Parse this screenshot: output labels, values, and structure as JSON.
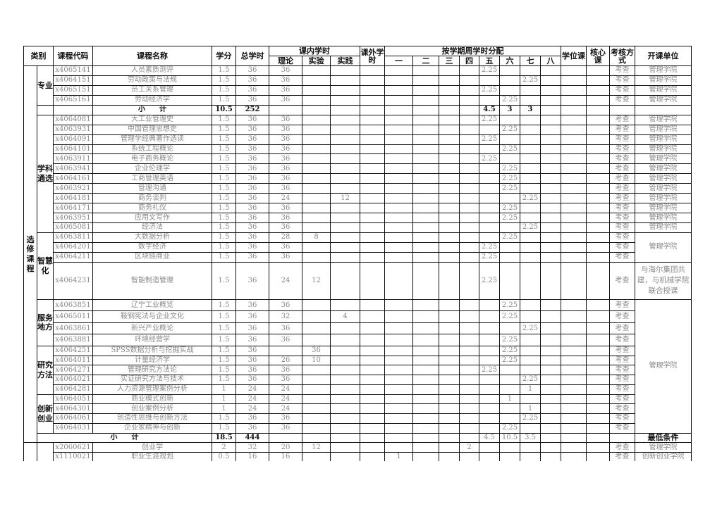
{
  "header": {
    "category": "类别",
    "code": "课程代码",
    "name": "课程名称",
    "credits": "学分",
    "total_hours": "总学时",
    "in_class": "课内学时",
    "theory": "理论",
    "lab": "实验",
    "practice": "实践",
    "extra": "课外学时",
    "semester_dist": "按学期周学时分配",
    "semesters": [
      "一",
      "二",
      "三",
      "四",
      "五",
      "六",
      "七",
      "八"
    ],
    "degree": "学位课",
    "core": "核心课",
    "assess": "考核方式",
    "unit": "开课单位"
  },
  "outer_category": "选修课程",
  "subtotal_label": "小　　计",
  "groups": [
    {
      "label": "专业",
      "start": 0,
      "rows": 4
    },
    {
      "label": "学科通选",
      "start": 5,
      "rows": 12
    },
    {
      "label": "智慧化",
      "start": 17,
      "rows": 4
    },
    {
      "label": "服务地方",
      "start": 21,
      "rows": 4
    },
    {
      "label": "研究方法",
      "start": 25,
      "rows": 5
    },
    {
      "label": "创新创业",
      "start": 30,
      "rows": 4
    }
  ],
  "rows": [
    {
      "code": "x4065141",
      "name": "人员素质测评",
      "credits": "1.5",
      "total": "36",
      "theory": "36",
      "lab": "",
      "practice": "",
      "extra": "",
      "sem": [
        "",
        "",
        "",
        "",
        "2.25",
        "",
        "",
        ""
      ],
      "degree": "",
      "core": "",
      "assess": "考查"
    },
    {
      "code": "x4064151",
      "name": "劳动政策与法规",
      "credits": "1.5",
      "total": "36",
      "theory": "36",
      "lab": "",
      "practice": "",
      "extra": "",
      "sem": [
        "",
        "",
        "",
        "",
        "",
        "",
        "2.25",
        ""
      ],
      "degree": "",
      "core": "",
      "assess": "考查"
    },
    {
      "code": "x4065151",
      "name": "员工关系管理",
      "credits": "1.5",
      "total": "36",
      "theory": "36",
      "lab": "",
      "practice": "",
      "extra": "",
      "sem": [
        "",
        "",
        "",
        "",
        "2.25",
        "",
        "",
        ""
      ],
      "degree": "",
      "core": "",
      "assess": "考查"
    },
    {
      "code": "x4065161",
      "name": "劳动经济学",
      "credits": "1.5",
      "total": "36",
      "theory": "36",
      "lab": "",
      "practice": "",
      "extra": "",
      "sem": [
        "",
        "",
        "",
        "",
        "",
        "2.25",
        "",
        ""
      ],
      "degree": "",
      "core": "",
      "assess": "考查"
    },
    {
      "subtotal": true,
      "credits": "10.5",
      "total": "252",
      "theory": "",
      "lab": "",
      "practice": "",
      "extra": "",
      "sem": [
        "",
        "",
        "",
        "",
        "4.5",
        "3",
        "3",
        ""
      ],
      "degree": "",
      "core": "",
      "assess": ""
    },
    {
      "code": "x4064081",
      "name": "大工业管理史",
      "credits": "1.5",
      "total": "36",
      "theory": "36",
      "lab": "",
      "practice": "",
      "extra": "",
      "sem": [
        "",
        "",
        "",
        "",
        "2.25",
        "",
        "",
        ""
      ],
      "degree": "",
      "core": "",
      "assess": "考查"
    },
    {
      "code": "x4063931",
      "name": "中国管理思想史",
      "credits": "1.5",
      "total": "36",
      "theory": "36",
      "lab": "",
      "practice": "",
      "extra": "",
      "sem": [
        "",
        "",
        "",
        "",
        "",
        "2.25",
        "",
        ""
      ],
      "degree": "",
      "core": "",
      "assess": "考查"
    },
    {
      "code": "x4064091",
      "name": "管理学经典著作选读",
      "credits": "1.5",
      "total": "36",
      "theory": "36",
      "lab": "",
      "practice": "",
      "extra": "",
      "sem": [
        "",
        "",
        "",
        "",
        "2.25",
        "",
        "",
        ""
      ],
      "degree": "",
      "core": "",
      "assess": "考查"
    },
    {
      "code": "x4064101",
      "name": "系统工程概论",
      "credits": "1.5",
      "total": "36",
      "theory": "36",
      "lab": "",
      "practice": "",
      "extra": "",
      "sem": [
        "",
        "",
        "",
        "",
        "",
        "2.25",
        "",
        ""
      ],
      "degree": "",
      "core": "",
      "assess": "考查"
    },
    {
      "code": "x4063911",
      "name": "电子商务概论",
      "credits": "1.5",
      "total": "36",
      "theory": "36",
      "lab": "",
      "practice": "",
      "extra": "",
      "sem": [
        "",
        "",
        "",
        "",
        "2.25",
        "",
        "",
        ""
      ],
      "degree": "",
      "core": "",
      "assess": "考查"
    },
    {
      "code": "x4063941",
      "name": "企业伦理学",
      "credits": "1.5",
      "total": "36",
      "theory": "36",
      "lab": "",
      "practice": "",
      "extra": "",
      "sem": [
        "",
        "",
        "",
        "",
        "",
        "2.25",
        "",
        ""
      ],
      "degree": "",
      "core": "",
      "assess": "考查"
    },
    {
      "code": "x4064161",
      "name": "工商管理英语",
      "credits": "1.5",
      "total": "36",
      "theory": "36",
      "lab": "",
      "practice": "",
      "extra": "",
      "sem": [
        "",
        "",
        "",
        "",
        "",
        "2.25",
        "",
        ""
      ],
      "degree": "",
      "core": "",
      "assess": "考查"
    },
    {
      "code": "x4063921",
      "name": "管理沟通",
      "credits": "1.5",
      "total": "36",
      "theory": "36",
      "lab": "",
      "practice": "",
      "extra": "",
      "sem": [
        "",
        "",
        "",
        "",
        "",
        "2.25",
        "",
        ""
      ],
      "degree": "",
      "core": "",
      "assess": "考查"
    },
    {
      "code": "x4064181",
      "name": "商务谈判",
      "credits": "1.5",
      "total": "36",
      "theory": "24",
      "lab": "",
      "practice": "12",
      "extra": "",
      "sem": [
        "",
        "",
        "",
        "",
        "",
        "",
        "2.25",
        ""
      ],
      "degree": "",
      "core": "",
      "assess": "考查"
    },
    {
      "code": "x4064171",
      "name": "商务礼仪",
      "credits": "1.5",
      "total": "36",
      "theory": "36",
      "lab": "",
      "practice": "",
      "extra": "",
      "sem": [
        "",
        "",
        "",
        "",
        "",
        "2.25",
        "",
        ""
      ],
      "degree": "",
      "core": "",
      "assess": "考查"
    },
    {
      "code": "x4063951",
      "name": "应用文写作",
      "credits": "1.5",
      "total": "36",
      "theory": "36",
      "lab": "",
      "practice": "",
      "extra": "",
      "sem": [
        "",
        "",
        "",
        "",
        "",
        "2.25",
        "",
        ""
      ],
      "degree": "",
      "core": "",
      "assess": "考查"
    },
    {
      "code": "x4065081",
      "name": "经济法",
      "credits": "1.5",
      "total": "36",
      "theory": "36",
      "lab": "",
      "practice": "",
      "extra": "",
      "sem": [
        "",
        "",
        "",
        "",
        "",
        "",
        "2.25",
        ""
      ],
      "degree": "",
      "core": "",
      "assess": "考查"
    },
    {
      "code": "x4063811",
      "name": "大数据分析",
      "credits": "1.5",
      "total": "36",
      "theory": "28",
      "lab": "8",
      "practice": "",
      "extra": "",
      "sem": [
        "",
        "",
        "",
        "",
        "",
        "2.25",
        "",
        ""
      ],
      "degree": "",
      "core": "",
      "assess": "考查"
    },
    {
      "code": "x4064201",
      "name": "数字经济",
      "credits": "1.5",
      "total": "36",
      "theory": "36",
      "lab": "",
      "practice": "",
      "extra": "",
      "sem": [
        "",
        "",
        "",
        "",
        "2.25",
        "",
        "",
        ""
      ],
      "degree": "",
      "core": "",
      "assess": "考查"
    },
    {
      "code": "x4064211",
      "name": "区块链商业",
      "credits": "1.5",
      "total": "36",
      "theory": "36",
      "lab": "",
      "practice": "",
      "extra": "",
      "sem": [
        "",
        "",
        "",
        "",
        "2.25",
        "",
        "",
        ""
      ],
      "degree": "",
      "core": "",
      "assess": "考查"
    },
    {
      "code": "x4064231",
      "name": "智能制造管理",
      "credits": "1.5",
      "total": "36",
      "theory": "24",
      "lab": "12",
      "practice": "",
      "extra": "",
      "sem": [
        "",
        "",
        "",
        "",
        "2.25",
        "",
        "",
        ""
      ],
      "degree": "",
      "core": "",
      "assess": "考查"
    },
    {
      "code": "x4063851",
      "name": "辽宁工业概览",
      "credits": "1.5",
      "total": "36",
      "theory": "36",
      "lab": "",
      "practice": "",
      "extra": "",
      "sem": [
        "",
        "",
        "",
        "",
        "",
        "2.25",
        "",
        ""
      ],
      "degree": "",
      "core": "",
      "assess": "考查"
    },
    {
      "code": "x4065011",
      "name": "鞍钢宪法与企业文化",
      "credits": "1.5",
      "total": "36",
      "theory": "32",
      "lab": "",
      "practice": "4",
      "extra": "",
      "sem": [
        "",
        "",
        "",
        "",
        "",
        "2.25",
        "",
        ""
      ],
      "degree": "",
      "core": "",
      "assess": "考查"
    },
    {
      "code": "x4063861",
      "name": "新兴产业概论",
      "credits": "1.5",
      "total": "36",
      "theory": "36",
      "lab": "",
      "practice": "",
      "extra": "",
      "sem": [
        "",
        "",
        "",
        "",
        "",
        "",
        "2.25",
        ""
      ],
      "degree": "",
      "core": "",
      "assess": "考查"
    },
    {
      "code": "x4063881",
      "name": "环境经营学",
      "credits": "1.5",
      "total": "36",
      "theory": "36",
      "lab": "",
      "practice": "",
      "extra": "",
      "sem": [
        "",
        "",
        "",
        "",
        "",
        "2.25",
        "",
        ""
      ],
      "degree": "",
      "core": "",
      "assess": "考查"
    },
    {
      "code": "x4064251",
      "name": "SPSS数据分析与挖掘实战",
      "credits": "1.5",
      "total": "36",
      "theory": "",
      "lab": "36",
      "practice": "",
      "extra": "",
      "sem": [
        "",
        "",
        "",
        "",
        "",
        "2.25",
        "",
        ""
      ],
      "degree": "",
      "core": "",
      "assess": "考查"
    },
    {
      "code": "x4064011",
      "name": "计量经济学",
      "credits": "1.5",
      "total": "36",
      "theory": "26",
      "lab": "10",
      "practice": "",
      "extra": "",
      "sem": [
        "",
        "",
        "",
        "",
        "",
        "2.25",
        "",
        ""
      ],
      "degree": "",
      "core": "",
      "assess": "考查"
    },
    {
      "code": "x4064271",
      "name": "管理研究方法论",
      "credits": "1.5",
      "total": "36",
      "theory": "36",
      "lab": "",
      "practice": "",
      "extra": "",
      "sem": [
        "",
        "",
        "",
        "",
        "2.25",
        "",
        "",
        ""
      ],
      "degree": "",
      "core": "",
      "assess": "考查"
    },
    {
      "code": "x4064021",
      "name": "实证研究方法与技术",
      "credits": "1.5",
      "total": "36",
      "theory": "36",
      "lab": "",
      "practice": "",
      "extra": "",
      "sem": [
        "",
        "",
        "",
        "",
        "",
        "",
        "2.25",
        ""
      ],
      "degree": "",
      "core": "",
      "assess": "考查"
    },
    {
      "code": "x4064281",
      "name": "人力资源管理案例分析",
      "credits": "1",
      "total": "24",
      "theory": "24",
      "lab": "",
      "practice": "",
      "extra": "",
      "sem": [
        "",
        "",
        "",
        "",
        "",
        "",
        "1",
        ""
      ],
      "degree": "",
      "core": "",
      "assess": "考查"
    },
    {
      "code": "x4064051",
      "name": "商业模式创新",
      "credits": "1",
      "total": "24",
      "theory": "24",
      "lab": "",
      "practice": "",
      "extra": "",
      "sem": [
        "",
        "",
        "",
        "",
        "",
        "1",
        "",
        ""
      ],
      "degree": "",
      "core": "",
      "assess": "考查"
    },
    {
      "code": "x4064301",
      "name": "创业案例分析",
      "credits": "1",
      "total": "24",
      "theory": "24",
      "lab": "",
      "practice": "",
      "extra": "",
      "sem": [
        "",
        "",
        "",
        "",
        "",
        "",
        "1",
        ""
      ],
      "degree": "",
      "core": "",
      "assess": "考查"
    },
    {
      "code": "x4064061",
      "name": "创造性思维与创新方法",
      "credits": "1.5",
      "total": "36",
      "theory": "36",
      "lab": "",
      "practice": "",
      "extra": "",
      "sem": [
        "",
        "",
        "",
        "",
        "",
        "",
        "2.25",
        ""
      ],
      "degree": "",
      "core": "",
      "assess": "考查"
    },
    {
      "code": "x4064031",
      "name": "企业家精神与创新",
      "credits": "1.5",
      "total": "36",
      "theory": "36",
      "lab": "",
      "practice": "",
      "extra": "",
      "sem": [
        "",
        "",
        "",
        "",
        "",
        "2.25",
        "",
        ""
      ],
      "degree": "",
      "core": "",
      "assess": "考查"
    },
    {
      "subtotal": true,
      "wide": true,
      "credits": "18.5",
      "total": "444",
      "theory": "",
      "lab": "",
      "practice": "",
      "extra": "",
      "sem": [
        "",
        "",
        "",
        "",
        "4.5",
        "10.5",
        "3.5",
        ""
      ],
      "degree": "",
      "core": "",
      "assess": ""
    },
    {
      "code": "x2060621",
      "name": "创业学",
      "credits": "2",
      "total": "32",
      "theory": "20",
      "lab": "12",
      "practice": "",
      "extra": "",
      "sem": [
        "",
        "",
        "",
        "2",
        "",
        "",
        "",
        ""
      ],
      "degree": "",
      "core": "",
      "assess": "考查"
    },
    {
      "code": "x1110021",
      "name": "职业生涯规划",
      "credits": "0.5",
      "total": "16",
      "theory": "16",
      "lab": "",
      "practice": "",
      "extra": "",
      "sem": [
        "1",
        "",
        "",
        "",
        "",
        "",
        "",
        ""
      ],
      "degree": "",
      "core": "",
      "assess": "考查"
    }
  ],
  "unit_blocks": [
    {
      "text": "管理学院",
      "rows": 1
    },
    {
      "text": "管理学院",
      "rows": 1
    },
    {
      "text": "管理学院",
      "rows": 1
    },
    {
      "text": "管理学院",
      "rows": 1
    },
    {
      "text": "",
      "rows": 1
    },
    {
      "text": "管理学院",
      "rows": 1
    },
    {
      "text": "管理学院",
      "rows": 1
    },
    {
      "text": "管理学院",
      "rows": 1
    },
    {
      "text": "管理学院",
      "rows": 1
    },
    {
      "text": "管理学院",
      "rows": 1
    },
    {
      "text": "管理学院",
      "rows": 1
    },
    {
      "text": "管理学院",
      "rows": 1
    },
    {
      "text": "管理学院",
      "rows": 1
    },
    {
      "text": "管理学院",
      "rows": 1
    },
    {
      "text": "管理学院",
      "rows": 1
    },
    {
      "text": "管理学院",
      "rows": 1
    },
    {
      "text": "管理学院",
      "rows": 1
    },
    {
      "text": "管理学院",
      "rows": 3
    },
    {
      "text": "与海尔集团共建，与机械学院联合授课",
      "rows": 1
    },
    {
      "text": "管理学院",
      "rows": 13
    },
    {
      "text": "最低条件",
      "rows": 1,
      "bold": true
    },
    {
      "text": "管理学院",
      "rows": 1
    },
    {
      "text": "创新创业学院",
      "rows": 1
    }
  ]
}
